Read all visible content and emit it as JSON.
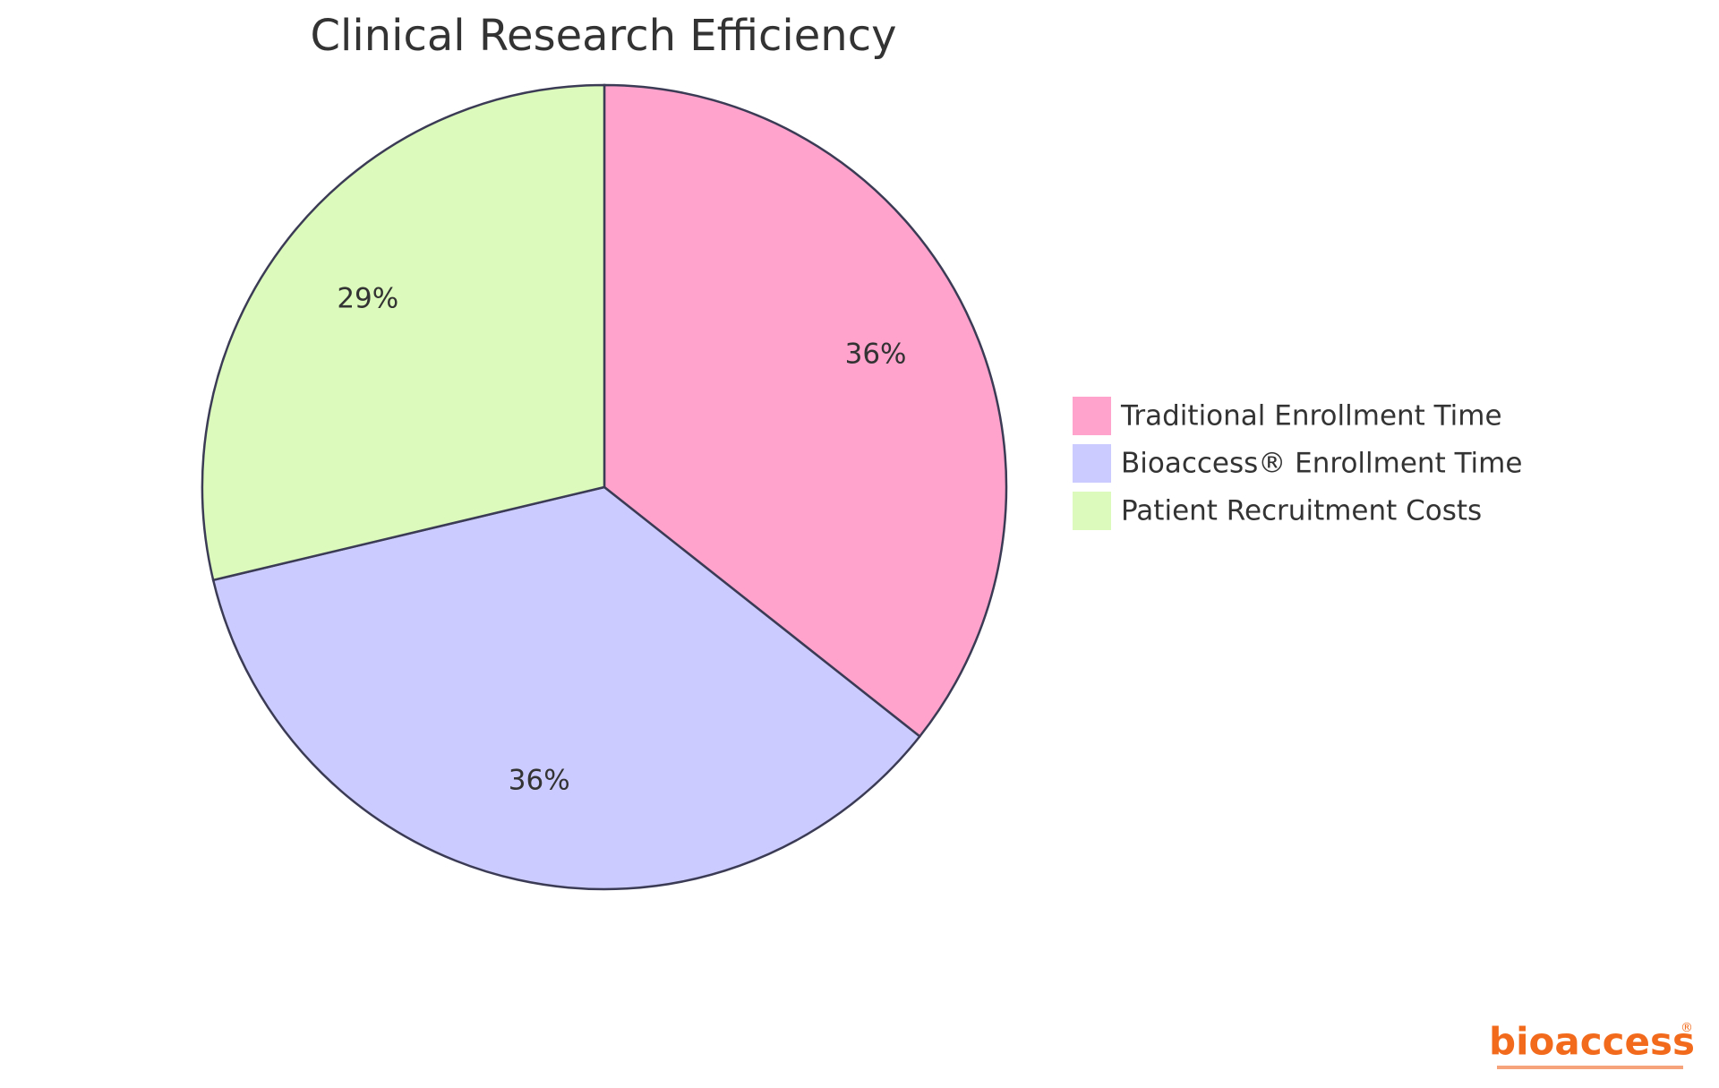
{
  "chart_data": {
    "type": "pie",
    "title": "Clinical Research Efficiency",
    "categories": [
      "Traditional Enrollment Time",
      "Bioaccess® Enrollment Time",
      "Patient Recruitment Costs"
    ],
    "values": [
      36,
      36,
      29
    ],
    "value_labels": [
      "36%",
      "36%",
      "29%"
    ],
    "colors": [
      "#ffa3cc",
      "#cbcbff",
      "#dcfabb"
    ],
    "legend": "right"
  },
  "logo": {
    "text": "bioaccess",
    "mark": "®"
  }
}
